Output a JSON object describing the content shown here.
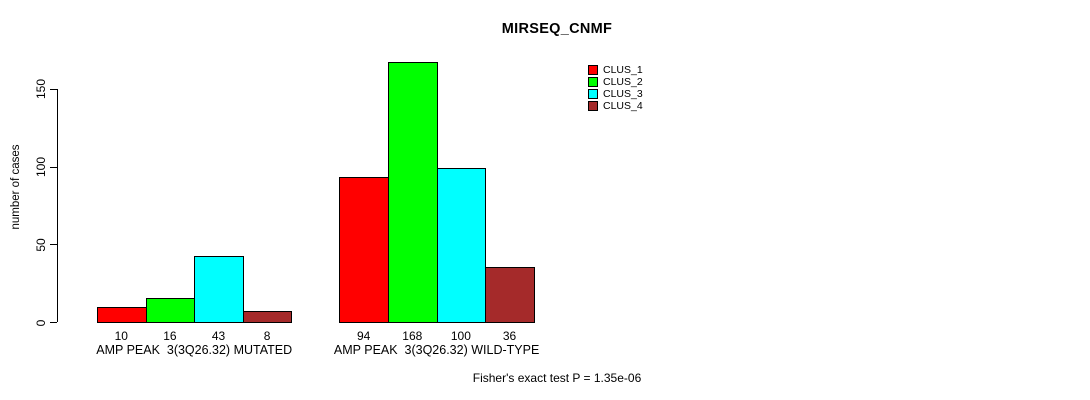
{
  "header": {
    "title": "MIRSEQ_CNMF"
  },
  "footnote": {
    "text": "Fisher's exact test P = 1.35e-06"
  },
  "chart_data": {
    "type": "bar",
    "title": "MIRSEQ_CNMF",
    "xlabel": "",
    "ylabel": "number of cases",
    "yticks": [
      0,
      50,
      100,
      150
    ],
    "ylim": [
      0,
      168
    ],
    "grid": false,
    "legend_position": "top-right",
    "bar_border_color": "#000000",
    "categories": [
      "AMP PEAK  3(3Q26.32) MUTATED",
      "AMP PEAK  3(3Q26.32) WILD-TYPE"
    ],
    "series": [
      {
        "name": "CLUS_1",
        "color": "#FF0000",
        "values": [
          10,
          94
        ]
      },
      {
        "name": "CLUS_2",
        "color": "#00FF00",
        "values": [
          16,
          168
        ]
      },
      {
        "name": "CLUS_3",
        "color": "#00FFFF",
        "values": [
          43,
          100
        ]
      },
      {
        "name": "CLUS_4",
        "color": "#A52A2A",
        "values": [
          8,
          36
        ]
      }
    ],
    "groups": [
      {
        "label": "AMP PEAK  3(3Q26.32) MUTATED",
        "values": [
          10,
          16,
          43,
          8
        ]
      },
      {
        "label": "AMP PEAK  3(3Q26.32) WILD-TYPE",
        "values": [
          94,
          168,
          100,
          36
        ]
      }
    ],
    "annotation": "Fisher's exact test P = 1.35e-06"
  }
}
